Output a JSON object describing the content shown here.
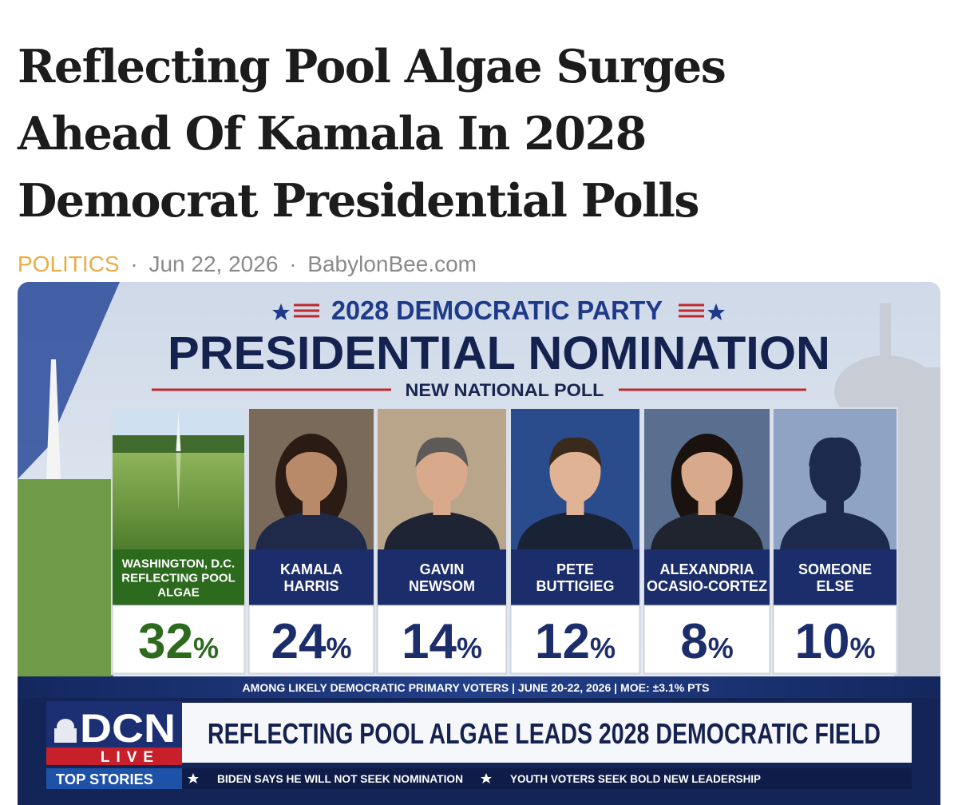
{
  "article": {
    "headline": [
      "Reflecting Pool Algae Surges",
      "Ahead Of Kamala In 2028",
      "Democrat Presidential Polls"
    ],
    "meta": {
      "category": "POLITICS",
      "separator": "·",
      "date": "Jun 22, 2026",
      "source": "BabylonBee.com"
    }
  },
  "graphic": {
    "kicker": "2028 DEMOCRATIC PARTY",
    "title": "PRESIDENTIAL NOMINATION",
    "subtitle": "NEW NATIONAL POLL",
    "candidates": [
      {
        "name": [
          "WASHINGTON, D.C.",
          "REFLECTING POOL",
          "ALGAE"
        ],
        "number": "32",
        "sign": "%",
        "color": "#2c6a1e"
      },
      {
        "name": [
          "KAMALA",
          "HARRIS"
        ],
        "number": "24",
        "sign": "%",
        "color": "#1c2d6b"
      },
      {
        "name": [
          "GAVIN",
          "NEWSOM"
        ],
        "number": "14",
        "sign": "%",
        "color": "#1c2d6b"
      },
      {
        "name": [
          "PETE",
          "BUTTIGIEG"
        ],
        "number": "12",
        "sign": "%",
        "color": "#1c2d6b"
      },
      {
        "name": [
          "ALEXANDRIA",
          "OCASIO-CORTEZ"
        ],
        "number": "8",
        "sign": "%",
        "color": "#1c2d6b"
      },
      {
        "name": [
          "SOMEONE",
          "ELSE"
        ],
        "number": "10",
        "sign": "%",
        "color": "#1c2d6b"
      }
    ],
    "footnote": "AMONG LIKELY DEMOCRATIC PRIMARY VOTERS | JUNE 20-22, 2026 | MOE: ±3.1% PTS",
    "network": {
      "logo": "DCN",
      "live": "LIVE"
    },
    "lower_third": "REFLECTING POOL ALGAE LEADS 2028 DEMOCRATIC FIELD",
    "ticker": {
      "label": "TOP STORIES",
      "items": [
        "BIDEN SAYS HE WILL NOT SEEK NOMINATION",
        "YOUTH VOTERS SEEK BOLD NEW LEADERSHIP"
      ]
    }
  }
}
